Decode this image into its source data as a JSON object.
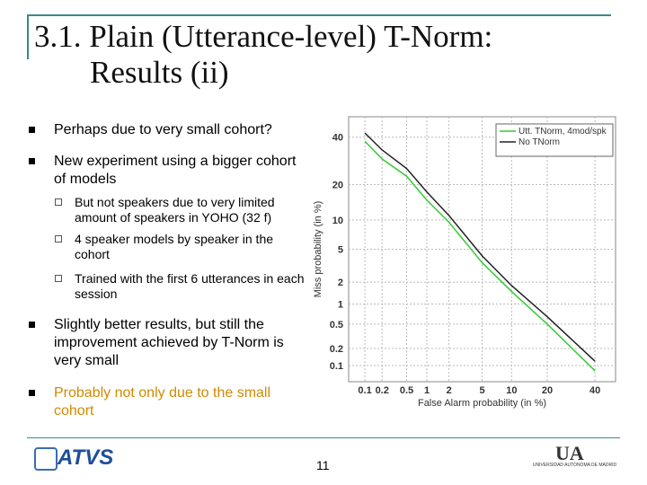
{
  "title": [
    "3.1. Plain (Utterance-level) T-Norm:",
    "Results (ii)"
  ],
  "bullets": [
    {
      "text": "Perhaps due to very small cohort?"
    },
    {
      "text": "New experiment using a bigger cohort of models",
      "sub": [
        "But not speakers due to very limited amount of speakers in YOHO (32 f)",
        "4 speaker models by speaker in the cohort",
        "Trained with the first 6 utterances in each session"
      ]
    },
    {
      "text": "Slightly better results, but still the improvement achieved by T-Norm is very small"
    },
    {
      "text": "Probably not only due to the small cohort"
    }
  ],
  "footer": {
    "logo_left": "ATVS",
    "page": "11",
    "logo_right": "UA",
    "logo_right_sub": "UNIVERSIDAD AUTONOMA DE MADRID"
  },
  "chart_data": {
    "type": "line",
    "scale": "probit",
    "xlabel": "False Alarm probability (in %)",
    "ylabel": "Miss probability (in %)",
    "x": [
      0.1,
      0.2,
      0.5,
      1,
      2,
      5,
      10,
      20,
      40
    ],
    "series": [
      {
        "name": "Utt. TNorm, 4mod/spk",
        "color": "#33cc33",
        "values": [
          38,
          30,
          23,
          15,
          9.5,
          3.5,
          1.5,
          0.5,
          0.08
        ]
      },
      {
        "name": "No TNorm",
        "color": "#222222",
        "values": [
          42,
          34,
          26,
          17.5,
          11,
          4.2,
          1.8,
          0.65,
          0.12
        ]
      }
    ],
    "xlim": [
      0.05,
      50
    ],
    "ylim": [
      0.05,
      50
    ],
    "xticks": [
      0.1,
      0.2,
      0.5,
      1,
      2,
      5,
      10,
      20,
      40
    ],
    "yticks": [
      0.1,
      0.2,
      0.5,
      1,
      2,
      5,
      10,
      20,
      40
    ],
    "grid": true,
    "legend": "upper right"
  }
}
